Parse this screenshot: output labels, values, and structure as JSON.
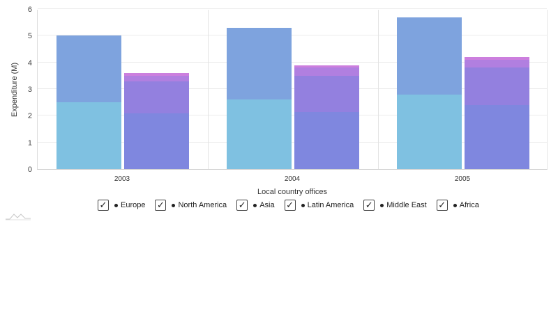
{
  "chart_data": {
    "type": "bar",
    "stacked": true,
    "title": "",
    "xlabel": "Local country offices",
    "ylabel": "Expenditure (M)",
    "ylim": [
      0,
      6
    ],
    "yticks": [
      0,
      1,
      2,
      3,
      4,
      5,
      6
    ],
    "grid": true,
    "legend_position": "bottom",
    "categories": [
      "2003",
      "2004",
      "2005"
    ],
    "stacks": [
      {
        "name": "stack-1",
        "series": [
          "Europe",
          "North America"
        ]
      },
      {
        "name": "stack-2",
        "series": [
          "Asia",
          "Latin America",
          "Middle East",
          "Africa"
        ]
      }
    ],
    "series": [
      {
        "name": "Europe",
        "stack": "stack-1",
        "color": "#7fc1e1",
        "values": [
          2.5,
          2.6,
          2.8
        ]
      },
      {
        "name": "North America",
        "stack": "stack-1",
        "color": "#7ea3de",
        "values": [
          2.5,
          2.7,
          2.9
        ]
      },
      {
        "name": "Asia",
        "stack": "stack-2",
        "color": "#7f87df",
        "values": [
          2.1,
          2.15,
          2.4
        ]
      },
      {
        "name": "Latin America",
        "stack": "stack-2",
        "color": "#9380df",
        "values": [
          1.2,
          1.35,
          1.4
        ]
      },
      {
        "name": "Middle East",
        "stack": "stack-2",
        "color": "#b17fe0",
        "values": [
          0.2,
          0.3,
          0.3
        ]
      },
      {
        "name": "Africa",
        "stack": "stack-2",
        "color": "#cc7fde",
        "values": [
          0.1,
          0.1,
          0.1
        ]
      }
    ]
  },
  "axis": {
    "y_title": "Expenditure (M)",
    "x_title": "Local country offices",
    "y_ticks": [
      "0",
      "1",
      "2",
      "3",
      "4",
      "5",
      "6"
    ],
    "x_ticks": [
      "2003",
      "2004",
      "2005"
    ]
  },
  "legend": {
    "items": [
      {
        "label": "Europe",
        "checked": true
      },
      {
        "label": "North America",
        "checked": true
      },
      {
        "label": "Asia",
        "checked": true
      },
      {
        "label": "Latin America",
        "checked": true
      },
      {
        "label": "Middle East",
        "checked": true
      },
      {
        "label": "Africa",
        "checked": true
      }
    ],
    "check_glyph": "✓"
  }
}
